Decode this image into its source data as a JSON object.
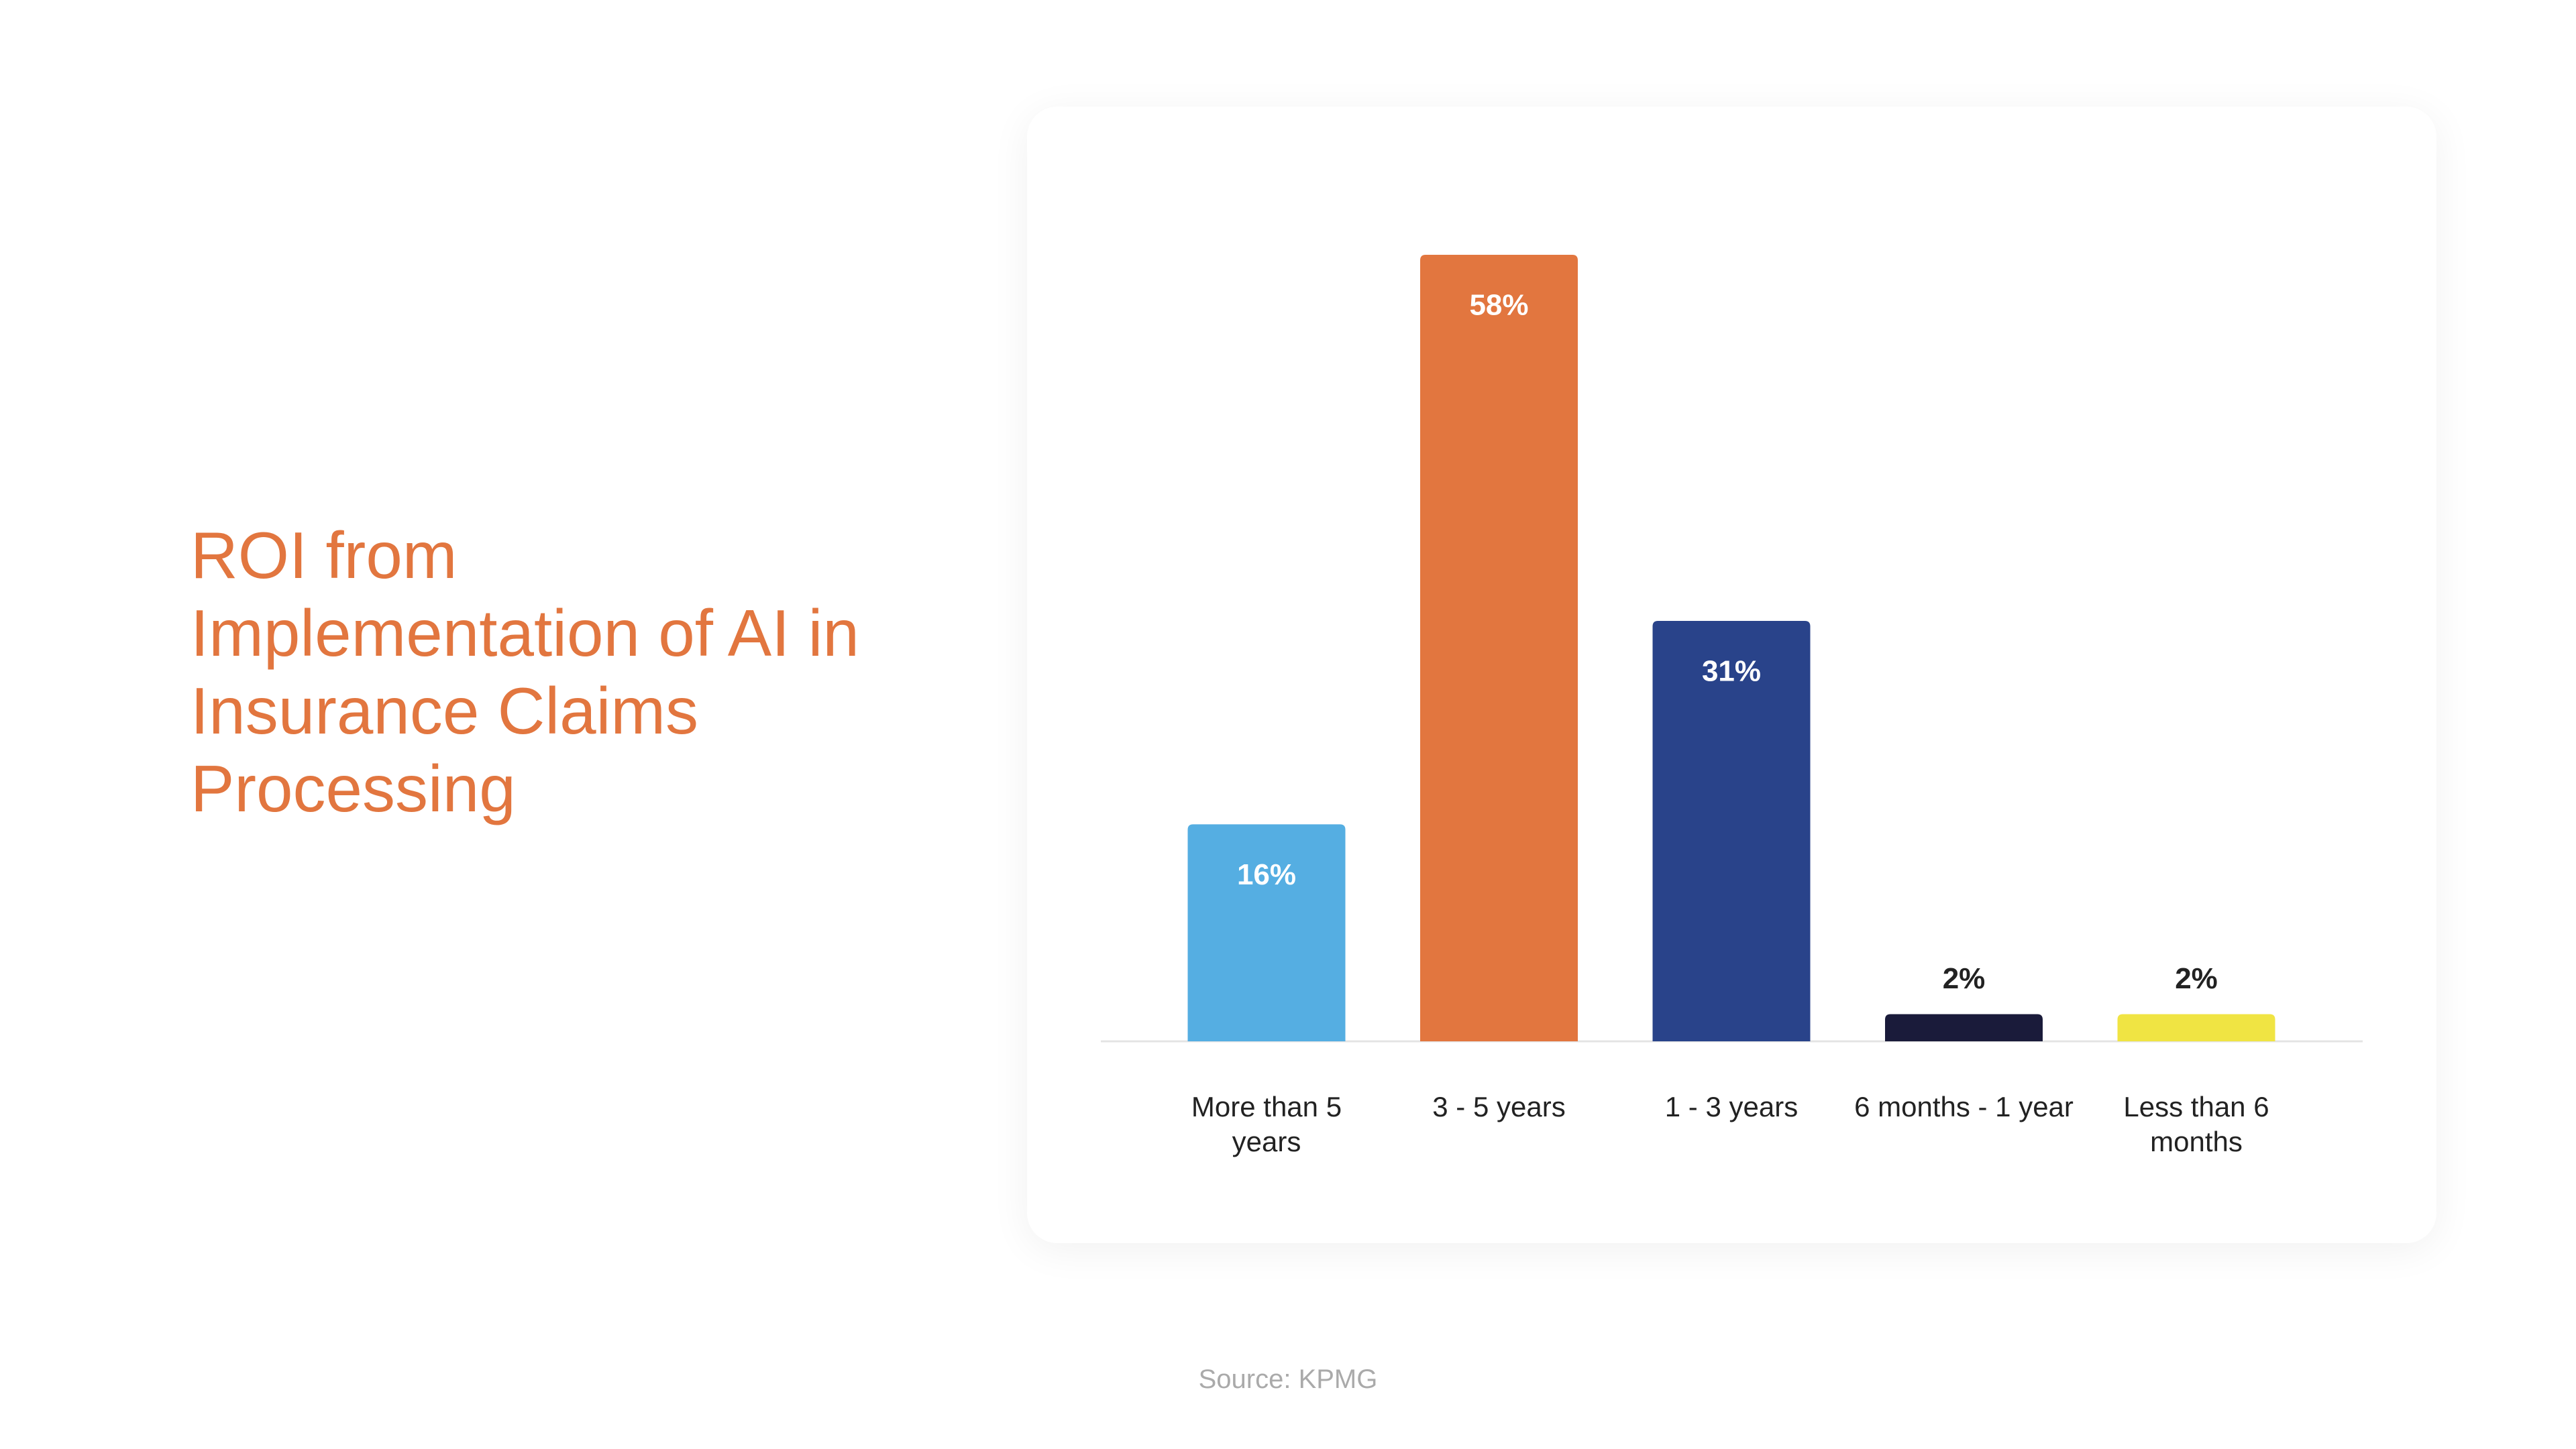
{
  "title": "ROI from Implementation of AI in Insurance Claims Processing",
  "source": "Source: KPMG",
  "chart_data": {
    "type": "bar",
    "categories": [
      "More than 5 years",
      "3 - 5 years",
      "1 - 3 years",
      "6 months - 1 year",
      "Less than 6 months"
    ],
    "values": [
      16,
      58,
      31,
      2,
      2
    ],
    "value_labels": [
      "16%",
      "58%",
      "31%",
      "2%",
      "2%"
    ],
    "colors": [
      "#55aee2",
      "#e2763f",
      "#29438a",
      "#1a1b3a",
      "#f0e443"
    ]
  }
}
